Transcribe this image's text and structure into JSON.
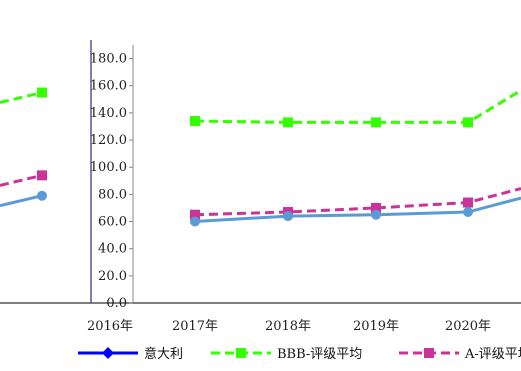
{
  "chart_data": {
    "type": "line",
    "title": "",
    "categories": [
      "2016年",
      "2017年",
      "2018年",
      "2019年",
      "2020年"
    ],
    "y_ticks": [
      "0.0",
      "20.0",
      "40.0",
      "60.0",
      "80.0",
      "100.0",
      "120.0",
      "140.0",
      "160.0",
      "180.0"
    ],
    "ylim": [
      0,
      190
    ],
    "grid": false,
    "legend_position": "bottom",
    "series": [
      {
        "name": "意大利",
        "color": "#0000ff",
        "marker": "diamond",
        "style": "solid",
        "values": [
          null,
          null,
          null,
          null,
          null
        ]
      },
      {
        "name": "BBB-评级平均",
        "color": "#33ff00",
        "marker": "square",
        "style": "dashed",
        "values": [
          155,
          134,
          133,
          133,
          133
        ]
      },
      {
        "name": "A-评级平均",
        "color": "#cc3399",
        "marker": "square",
        "style": "dashed",
        "values": [
          94,
          65,
          67,
          70,
          74
        ]
      },
      {
        "name": "",
        "color": "#5b9bd5",
        "marker": "circle",
        "style": "solid",
        "values": [
          79,
          60,
          64,
          65,
          67
        ]
      }
    ]
  }
}
